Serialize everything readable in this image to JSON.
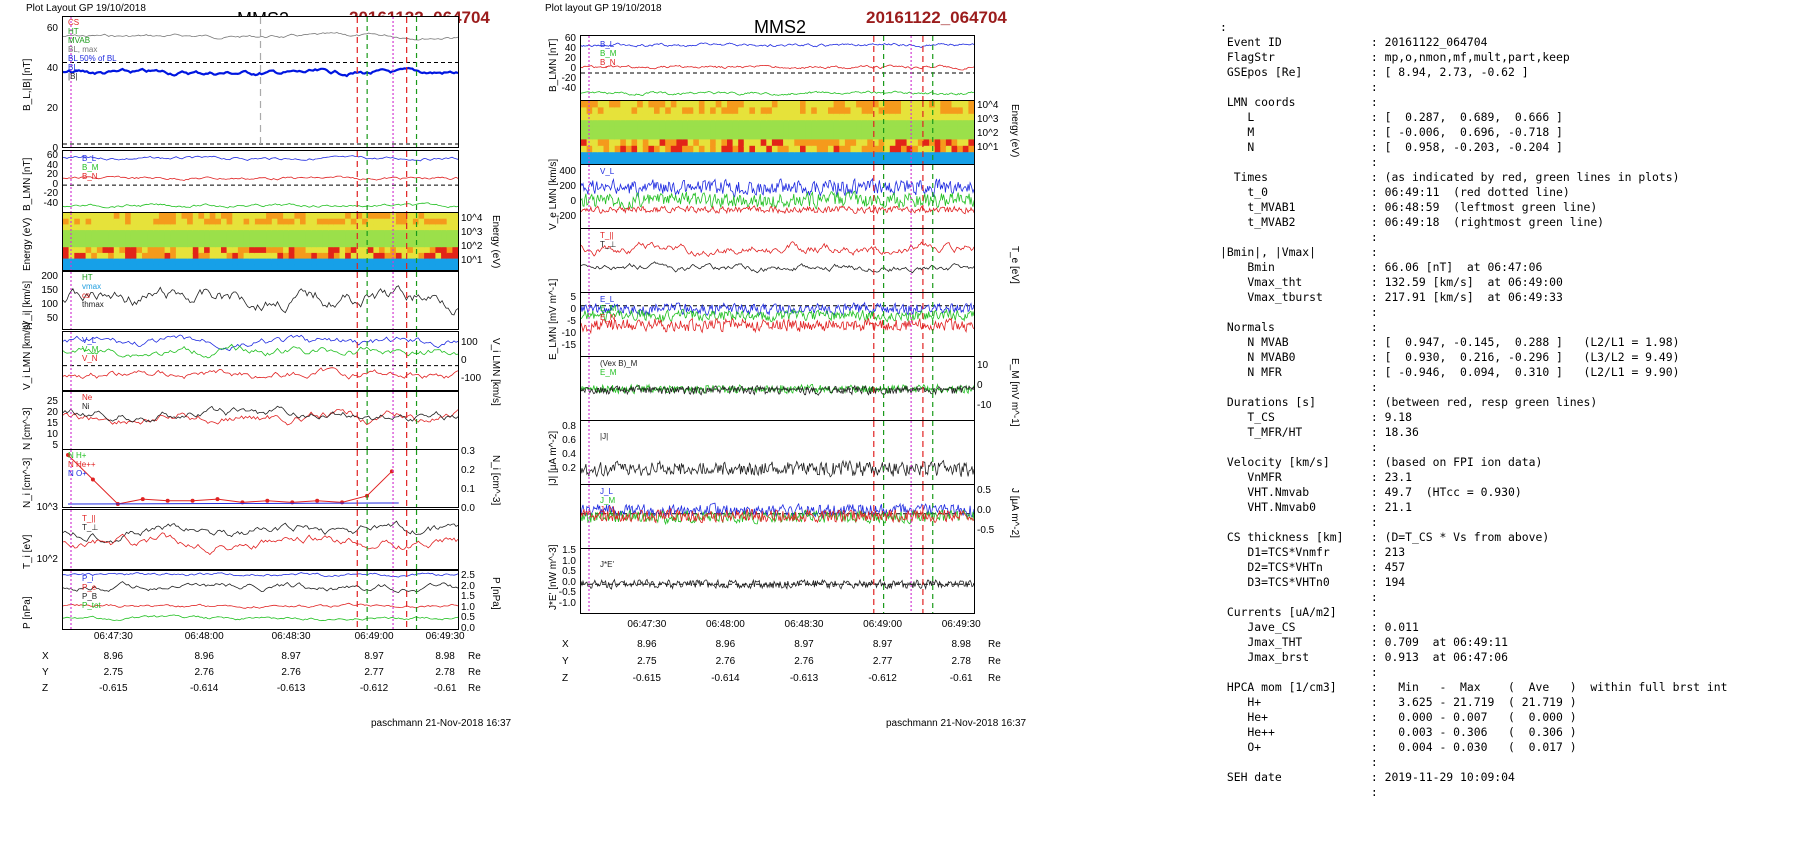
{
  "left": {
    "header": "Plot Layout GP 19/10/2018",
    "spacecraft": "MMS2",
    "event": "20161122_064704",
    "ylabels": [
      "B_L,|B| [nT]",
      "B_LMN [nT]",
      "Energy (eV)",
      "|V_i| [km/s]",
      "V_i LMN [km/s]",
      "N [cm^-3]",
      "N_i [cm^-3]",
      "T_i [eV]",
      "P [nPa]"
    ],
    "legends": {
      "p1": [
        "CS",
        "HT",
        "MVAB",
        "BL, max",
        "BL 50% of BL",
        "BL",
        "|B|"
      ],
      "p2": [
        "B_L",
        "B_M",
        "B_N"
      ],
      "p4": [
        "HT",
        "vmax",
        "cs",
        "thmax"
      ],
      "p5": [
        "V_L",
        "V_M",
        "V_N"
      ],
      "p6": [
        "Ne",
        "Ni"
      ],
      "p7": [
        "N  H+",
        "N  He++",
        "N  O+"
      ],
      "p8": [
        "T_||",
        "T_⊥"
      ],
      "p9": [
        "P_i",
        "P_e",
        "P_B",
        "P_tot"
      ]
    },
    "yticks": {
      "p1": [
        "60",
        "40",
        "20",
        "0"
      ],
      "p2": [
        "60",
        "40",
        "20",
        "0",
        "-20",
        "-40"
      ],
      "p3": [
        "10^4",
        "10^3",
        "10^2",
        "10^1"
      ],
      "p4": [
        "200",
        "150",
        "100",
        "50"
      ],
      "p5": [
        "100",
        "0",
        "-100"
      ],
      "p6": [
        "25",
        "20",
        "15",
        "10",
        "5"
      ],
      "p7": [
        "0.3",
        "0.2",
        "0.1",
        "0.0"
      ],
      "p7l": [
        "10^3"
      ],
      "p8": [
        "10^2"
      ],
      "p9": [
        "2.5",
        "2.0",
        "1.5",
        "1.0",
        "0.5",
        "0.0"
      ]
    },
    "xticks": [
      "06:47:30",
      "06:48:00",
      "06:48:30",
      "06:49:00",
      "06:49:30"
    ],
    "pos_rows": [
      {
        "label": "X",
        "vals": [
          "8.96",
          "8.96",
          "8.97",
          "8.97",
          "8.98"
        ],
        "unit": "Re"
      },
      {
        "label": "Y",
        "vals": [
          "2.75",
          "2.76",
          "2.76",
          "2.77",
          "2.78"
        ],
        "unit": "Re"
      },
      {
        "label": "Z",
        "vals": [
          "-0.615",
          "-0.614",
          "-0.613",
          "-0.612",
          "-0.61"
        ],
        "unit": "Re"
      }
    ],
    "footer": "paschmann 21-Nov-2018 16:37"
  },
  "mid": {
    "header": "Plot layout GP 19/10/2018",
    "spacecraft": "MMS2",
    "event": "20161122_064704",
    "ylabels": [
      "B_LMN [nT]",
      "Energy (eV)",
      "V_e LMN [km/s]",
      "T_e [eV]",
      "E_LMN [mV m^-1]",
      "E_M [mV m^-1]",
      "|J| [μA m^-2]",
      "J [μA m^-2]",
      "J*E' [nW m^-3]"
    ],
    "legends": {
      "p1": [
        "B_L",
        "B_M",
        "B_N"
      ],
      "p3": [
        "V_L"
      ],
      "p4": [
        "T_||",
        "T_⊥"
      ],
      "p5": [
        "E_L",
        "E_M",
        "E_N"
      ],
      "p6": [
        "(Vex B)_M",
        "E_M"
      ],
      "p7": [
        "|J|"
      ],
      "p8": [
        "J_L",
        "J_M",
        "J_N"
      ],
      "p9": [
        "J*E'"
      ]
    },
    "yticks": {
      "p1": [
        "60",
        "40",
        "20",
        "0",
        "-20",
        "-40"
      ],
      "p2": [
        "10^4",
        "10^3",
        "10^2",
        "10^1"
      ],
      "p3": [
        "400",
        "200",
        "0",
        "-200"
      ],
      "p5": [
        "5",
        "0",
        "-5",
        "-10",
        "-15"
      ],
      "p6": [
        "10",
        "0",
        "-10"
      ],
      "p7": [
        "0.8",
        "0.6",
        "0.4",
        "0.2"
      ],
      "p8": [
        "0.5",
        "0.0",
        "-0.5"
      ],
      "p9": [
        "1.5",
        "1.0",
        "0.5",
        "0.0",
        "-0.5",
        "-1.0"
      ]
    },
    "xticks": [
      "06:47:30",
      "06:48:00",
      "06:48:30",
      "06:49:00",
      "06:49:30"
    ],
    "pos_rows": [
      {
        "label": "X",
        "vals": [
          "8.96",
          "8.96",
          "8.97",
          "8.97",
          "8.98"
        ],
        "unit": "Re"
      },
      {
        "label": "Y",
        "vals": [
          "2.75",
          "2.76",
          "2.76",
          "2.77",
          "2.78"
        ],
        "unit": "Re"
      },
      {
        "label": "Z",
        "vals": [
          "-0.615",
          "-0.614",
          "-0.613",
          "-0.612",
          "-0.61"
        ],
        "unit": "Re"
      }
    ],
    "footer": "paschmann 21-Nov-2018 16:37"
  },
  "info_lines": [
    ":",
    " Event ID             : 20161122_064704",
    " FlagStr              : mp,o,nmon,mf,mult,part,keep",
    " GSEpos [Re]          : [ 8.94, 2.73, -0.62 ]",
    "                      :",
    " LMN coords           :",
    "    L                 : [  0.287,  0.689,  0.666 ]",
    "    M                 : [ -0.006,  0.696, -0.718 ]",
    "    N                 : [  0.958, -0.203, -0.204 ]",
    "                      :",
    "  Times               : (as indicated by red, green lines in plots)",
    "    t_0               : 06:49:11  (red dotted line)",
    "    t_MVAB1           : 06:48:59  (leftmost green line)",
    "    t_MVAB2           : 06:49:18  (rightmost green line)",
    "                      :",
    "|Bmin|, |Vmax|        :",
    "    Bmin              : 66.06 [nT]  at 06:47:06",
    "    Vmax_tht          : 132.59 [km/s]  at 06:49:00",
    "    Vmax_tburst       : 217.91 [km/s]  at 06:49:33",
    "                      :",
    " Normals              :",
    "    N MVAB            : [  0.947, -0.145,  0.288 ]   (L2/L1 = 1.98)",
    "    N MVAB0           : [  0.930,  0.216, -0.296 ]   (L3/L2 = 9.49)",
    "    N MFR             : [ -0.946,  0.094,  0.310 ]   (L2/L1 = 9.90)",
    "                      :",
    " Durations [s]        : (between red, resp green lines)",
    "    T_CS              : 9.18",
    "    T_MFR/HT          : 18.36",
    "                      :",
    " Velocity [km/s]      : (based on FPI ion data)",
    "    VnMFR             : 23.1",
    "    VHT.Nmvab         : 49.7  (HTcc = 0.930)",
    "    VHT.Nmvab0        : 21.1",
    "                      :",
    " CS thickness [km]    : (D=T_CS * Vs from above)",
    "    D1=TCS*Vnmfr      : 213",
    "    D2=TCS*VHTn       : 457",
    "    D3=TCS*VHTn0      : 194",
    "                      :",
    " Currents [uA/m2]     :",
    "    Jave_CS           : 0.011",
    "    Jmax_THT          : 0.709  at 06:49:11",
    "    Jmax_brst         : 0.913  at 06:47:06",
    "                      :",
    " HPCA mom [1/cm3]     :   Min   -  Max    (  Ave   )  within full brst int",
    "    H+                :   3.625 - 21.719  ( 21.719 )",
    "    He+               :   0.000 - 0.007   (  0.000 )",
    "    He++              :   0.003 - 0.306   (  0.306 )",
    "    O+                :   0.004 - 0.030   (  0.017 )",
    "                      :",
    " SEH date             : 2019-11-29 10:09:04",
    "                      :"
  ],
  "chart_data": [
    {
      "type": "line",
      "title": "MMS2 20161122_064704",
      "x_ticks": [
        "06:47:30",
        "06:48:00",
        "06:48:30",
        "06:49:00",
        "06:49:30"
      ],
      "xlim_s": [
        0,
        180
      ],
      "markers_s": {
        "t_0": 131,
        "t_MVAB1": 119,
        "t_MVAB2": 138
      },
      "panels": [
        {
          "name": "B_L,|B|",
          "ylim": [
            0,
            70
          ],
          "series": [
            {
              "name": "|B|",
              "mean": 55
            },
            {
              "name": "B_L",
              "mean": 52
            }
          ]
        },
        {
          "name": "B_LMN",
          "ylim": [
            -50,
            65
          ],
          "series": [
            {
              "name": "B_L",
              "mean": 55
            },
            {
              "name": "B_M",
              "mean": 10
            },
            {
              "name": "B_N",
              "mean": -30
            }
          ]
        },
        {
          "name": "|V_i|",
          "ylim": [
            0,
            230
          ],
          "series": [
            {
              "name": "|V_i|",
              "mean": 100
            }
          ]
        },
        {
          "name": "V_i LMN",
          "ylim": [
            -150,
            150
          ],
          "series": [
            {
              "name": "V_L",
              "mean": 110
            },
            {
              "name": "V_M",
              "mean": 60
            },
            {
              "name": "V_N",
              "mean": -20
            }
          ]
        },
        {
          "name": "N",
          "ylim": [
            0,
            30
          ],
          "series": [
            {
              "name": "Ne",
              "mean": 14
            },
            {
              "name": "Ni",
              "mean": 15
            }
          ]
        },
        {
          "name": "N_i",
          "ylim": [
            0,
            0.3
          ],
          "series": [
            {
              "name": "He++",
              "values": [
                0.3,
                0.15,
                0.0,
                0.03,
                0.02,
                0.02,
                0.03,
                0.01,
                0.02,
                0.01,
                0.02,
                0.01,
                0.05,
                0.2
              ]
            }
          ]
        },
        {
          "name": "T_i",
          "series": [
            {
              "name": "T_||",
              "mean": 200
            },
            {
              "name": "T_⊥",
              "mean": 350
            }
          ]
        },
        {
          "name": "P",
          "ylim": [
            0,
            2.7
          ],
          "series": [
            {
              "name": "P_tot",
              "mean": 2.3
            },
            {
              "name": "P_i",
              "mean": 1.8
            },
            {
              "name": "P_B",
              "mean": 0.6
            }
          ]
        }
      ]
    },
    {
      "type": "line",
      "title": "MMS2 20161122_064704",
      "x_ticks": [
        "06:47:30",
        "06:48:00",
        "06:48:30",
        "06:49:00",
        "06:49:30"
      ],
      "panels": [
        {
          "name": "B_LMN",
          "ylim": [
            -50,
            65
          ]
        },
        {
          "name": "V_e LMN",
          "ylim": [
            -300,
            500
          ]
        },
        {
          "name": "T_e"
        },
        {
          "name": "E_LMN",
          "ylim": [
            -18,
            7
          ]
        },
        {
          "name": "E_M",
          "ylim": [
            -15,
            15
          ]
        },
        {
          "name": "|J|",
          "ylim": [
            0,
            0.9
          ]
        },
        {
          "name": "J",
          "ylim": [
            -0.8,
            0.6
          ]
        },
        {
          "name": "J*E'",
          "ylim": [
            -1.2,
            1.6
          ]
        }
      ]
    }
  ]
}
